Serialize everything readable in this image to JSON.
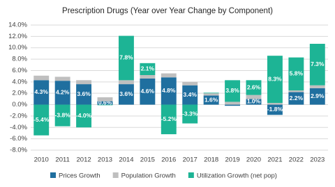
{
  "chart_data": {
    "type": "stacked-bar",
    "title": "Prescription Drugs (Year over Year Change by Component)",
    "categories": [
      "2010",
      "2011",
      "2012",
      "2013",
      "2014",
      "2015",
      "2016",
      "2017",
      "2018",
      "2019",
      "2020",
      "2021",
      "2022",
      "2023"
    ],
    "series": [
      {
        "name": "Prices Growth",
        "color": "#1f6f9f",
        "values": [
          4.3,
          4.2,
          3.6,
          0.6,
          3.6,
          4.6,
          4.8,
          3.4,
          1.6,
          -0.2,
          1.0,
          -1.8,
          2.2,
          2.9
        ],
        "value_labels": [
          "4.3%",
          "4.2%",
          "3.6%",
          "0.6%",
          "3.6%",
          "4.6%",
          "4.8%",
          "3.4%",
          "1.6%",
          null,
          "1.0%",
          "-1.8%",
          "2.2%",
          "2.9%"
        ]
      },
      {
        "name": "Population Growth",
        "color": "#bfbfbf",
        "values": [
          0.8,
          0.7,
          0.7,
          0.7,
          0.7,
          0.6,
          0.7,
          0.6,
          0.4,
          0.5,
          0.7,
          0.3,
          0.3,
          0.5
        ]
      },
      {
        "name": "Utilization Growth (net pop)",
        "color": "#1db495",
        "values": [
          -5.4,
          -3.8,
          -4.0,
          -0.1,
          7.8,
          2.1,
          -5.2,
          -3.3,
          0.1,
          3.8,
          2.6,
          8.3,
          5.8,
          7.3
        ],
        "value_labels": [
          "-5.4%",
          "-3.8%",
          "-4.0%",
          null,
          "7.8%",
          "2.1%",
          "-5.2%",
          "-3.3%",
          null,
          "3.8%",
          "2.6%",
          "8.3%",
          "5.8%",
          "7.3%"
        ]
      }
    ],
    "ylim": [
      -8,
      14
    ],
    "yticks": [
      {
        "value": -8,
        "label": "-8.0%"
      },
      {
        "value": -6,
        "label": "-6.0%"
      },
      {
        "value": -4,
        "label": "-4.0%"
      },
      {
        "value": -2,
        "label": "-2.0%"
      },
      {
        "value": 0,
        "label": "0.0%"
      },
      {
        "value": 2,
        "label": "2.0%"
      },
      {
        "value": 4,
        "label": "4.0%"
      },
      {
        "value": 6,
        "label": "6.0%"
      },
      {
        "value": 8,
        "label": "8.0%"
      },
      {
        "value": 10,
        "label": "10.0%"
      },
      {
        "value": 12,
        "label": "12.0%"
      },
      {
        "value": 14,
        "label": "14.0%"
      }
    ],
    "grid": true,
    "legend": "bottom"
  }
}
